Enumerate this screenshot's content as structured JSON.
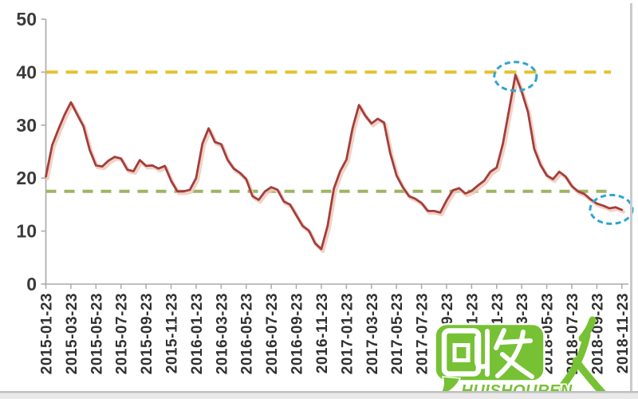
{
  "chart_data": {
    "type": "line",
    "title": "",
    "xlabel": "",
    "ylabel": "",
    "ylim": [
      0,
      50
    ],
    "y_ticks": [
      0,
      10,
      20,
      30,
      40,
      50
    ],
    "grid": false,
    "legend": null,
    "points_per_label": 4,
    "x_labels": [
      "2015-01-23",
      "2015-03-23",
      "2015-05-23",
      "2015-07-23",
      "2015-09-23",
      "2015-11-23",
      "2016-01-23",
      "2016-03-23",
      "2016-05-23",
      "2016-07-23",
      "2016-09-23",
      "2016-11-23",
      "2017-01-23",
      "2017-03-23",
      "2017-05-23",
      "2017-07-23",
      "2017-09-23",
      "2017-11-23",
      "2018-01-23",
      "2018-03-23",
      "2018-05-23",
      "2018-07-23",
      "2018-09-23",
      "2018-11-23"
    ],
    "series": [
      {
        "name": "price-index",
        "color": "#A33E3B",
        "values": [
          20.3,
          26.2,
          29.2,
          32.0,
          34.3,
          32.0,
          29.8,
          25.3,
          22.4,
          22.2,
          23.3,
          24.0,
          23.7,
          21.6,
          21.3,
          23.4,
          22.3,
          22.4,
          21.8,
          22.3,
          19.5,
          17.5,
          17.5,
          17.8,
          20.0,
          26.5,
          29.4,
          26.8,
          26.4,
          23.5,
          21.8,
          21.0,
          19.8,
          16.6,
          15.9,
          17.5,
          18.3,
          17.8,
          15.6,
          15.0,
          13.0,
          11.0,
          10.1,
          7.7,
          6.6,
          11.0,
          18.0,
          21.3,
          23.5,
          29.5,
          33.8,
          31.8,
          30.3,
          31.2,
          30.5,
          24.7,
          20.5,
          18.3,
          16.6,
          16.1,
          15.3,
          13.8,
          13.8,
          13.5,
          15.8,
          17.7,
          18.1,
          17.1,
          17.6,
          18.6,
          19.5,
          21.2,
          22.0,
          26.5,
          33.0,
          39.5,
          36.3,
          32.5,
          25.5,
          22.5,
          20.5,
          19.8,
          21.2,
          20.3,
          18.5,
          17.5,
          17.0,
          16.0,
          15.2,
          14.8,
          14.3,
          14.5,
          14.0
        ]
      }
    ],
    "reference_lines": [
      {
        "value": 40,
        "color": "#E2C22E",
        "style": "dashed",
        "name": "upper-threshold-40"
      },
      {
        "value": 17.5,
        "color": "#9DB464",
        "style": "dashed",
        "name": "lower-threshold-17-5"
      }
    ],
    "annotations": [
      {
        "type": "ellipse",
        "x_index": 75,
        "value": 39.2,
        "color": "#2EA4D2",
        "name": "peak-highlight-ellipse"
      },
      {
        "type": "ellipse",
        "x_index": 90.3,
        "value": 14.1,
        "color": "#2EA4D2",
        "name": "tail-highlight-ellipse"
      }
    ]
  },
  "watermark": {
    "cn": "回收",
    "person": "人",
    "latin": "HUISHOUREN",
    "full_text": "回收人 HUISHOUREN",
    "color": "#77C134"
  }
}
